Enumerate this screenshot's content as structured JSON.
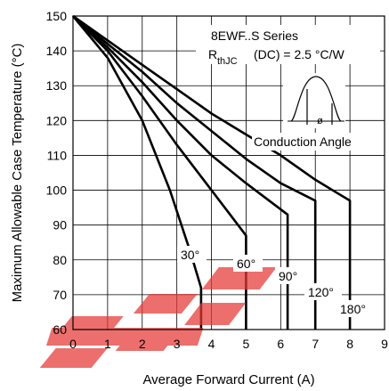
{
  "chart_data": {
    "type": "line",
    "xlabel": "Average Forward Current (A)",
    "ylabel": "Maximum Allowable Case Temperature (°C)",
    "xlim": [
      0,
      9
    ],
    "ylim": [
      60,
      150
    ],
    "xticks": [
      0,
      1,
      2,
      3,
      4,
      5,
      6,
      7,
      8,
      9
    ],
    "yticks": [
      60,
      70,
      80,
      90,
      100,
      110,
      120,
      130,
      140,
      150
    ],
    "grid": true,
    "annotations": {
      "series_title": "8EWF..S Series",
      "rth_symbol": "R",
      "rth_subscript": "thJC",
      "rth_value": "(DC) = 2.5 °C/W",
      "conduction_label": "Conduction Angle",
      "inset_theta": "ø"
    },
    "series": [
      {
        "name": "30°",
        "label": "30°",
        "x": [
          0,
          1.0,
          2.0,
          2.8,
          3.4,
          3.7,
          3.7
        ],
        "y": [
          150,
          138,
          120,
          100,
          82,
          72,
          60
        ]
      },
      {
        "name": "60°",
        "label": "60°",
        "x": [
          0,
          1.0,
          2.0,
          3.0,
          4.0,
          5.0,
          5.0
        ],
        "y": [
          150,
          140,
          127,
          113,
          100,
          87,
          60
        ]
      },
      {
        "name": "90°",
        "label": "90°",
        "x": [
          0,
          1.0,
          2.0,
          3.0,
          4.0,
          5.0,
          6.2,
          6.2
        ],
        "y": [
          150,
          141,
          131,
          120,
          110,
          102,
          93,
          60
        ]
      },
      {
        "name": "120°",
        "label": "120°",
        "x": [
          0,
          1.0,
          2.0,
          3.0,
          4.0,
          5.0,
          6.0,
          7.0,
          7.0
        ],
        "y": [
          150,
          142,
          134,
          125,
          117,
          109,
          102,
          97,
          60
        ]
      },
      {
        "name": "180°",
        "label": "180°",
        "x": [
          0,
          1.0,
          2.0,
          3.0,
          4.0,
          5.0,
          6.0,
          7.0,
          8.0,
          8.0
        ],
        "y": [
          150,
          143,
          136,
          129,
          122,
          116,
          110,
          103,
          97,
          60
        ]
      }
    ],
    "colors": {
      "line": "#000000",
      "grid": "#000000",
      "watermark": "#e53935"
    },
    "watermark": "EEP"
  }
}
